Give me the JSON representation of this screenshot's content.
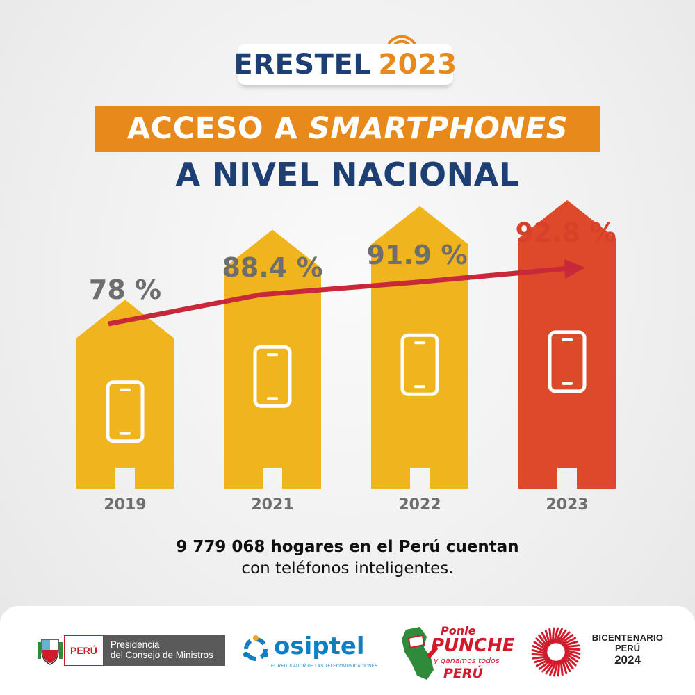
{
  "header": {
    "brand": "ERESTEL",
    "year": "2023",
    "colors": {
      "navy": "#1d3f73",
      "orange": "#e8891c"
    },
    "icon": "wifi-signal-icon"
  },
  "title": {
    "line1_prefix": "ACCESO A",
    "line1_emphasis": "SMARTPHONES",
    "line2": "A NIVEL NACIONAL"
  },
  "chart_data": {
    "type": "bar",
    "categories": [
      "2019",
      "2021",
      "2022",
      "2023"
    ],
    "values": [
      78,
      88.4,
      91.9,
      92.8
    ],
    "value_labels": [
      "78 %",
      "88.4 %",
      "91.9 %",
      "92.8 %"
    ],
    "unit": "%",
    "bar_shape": "house",
    "bar_icon": "smartphone-icon",
    "colors": [
      "#f0b51d",
      "#f0b51d",
      "#f0b51d",
      "#dd4a2a"
    ],
    "label_colors": [
      "#6e6e6e",
      "#6e6e6e",
      "#6e6e6e",
      "#d9402a"
    ],
    "trend_arrow": true,
    "trend_color": "#c8283a",
    "grid": false
  },
  "summary": {
    "bold": "9 779 068 hogares en el Perú cuentan",
    "rest": "con teléfonos inteligentes."
  },
  "footer": {
    "logos": [
      {
        "name": "pcm",
        "icon": "peru-coat-of-arms-icon",
        "peru": "PERÚ",
        "line1": "Presidencia",
        "line2": "del Consejo de Ministros"
      },
      {
        "name": "osiptel",
        "icon": "osiptel-people-icon",
        "word": "osiptel",
        "tagline": "EL REGULADOR DE LAS TELECOMUNICACIONES"
      },
      {
        "name": "ponle-punche",
        "icon": "peru-map-flag-icon",
        "t1": "Ponle",
        "t2": "PUNCHE",
        "t3": "y ganamos todos",
        "t4": "PERÚ"
      },
      {
        "name": "bicentenario",
        "icon": "bicentenario-sunburst-icon",
        "l1": "BICENTENARIO",
        "l2": "PERÚ",
        "l3": "2024"
      }
    ]
  }
}
